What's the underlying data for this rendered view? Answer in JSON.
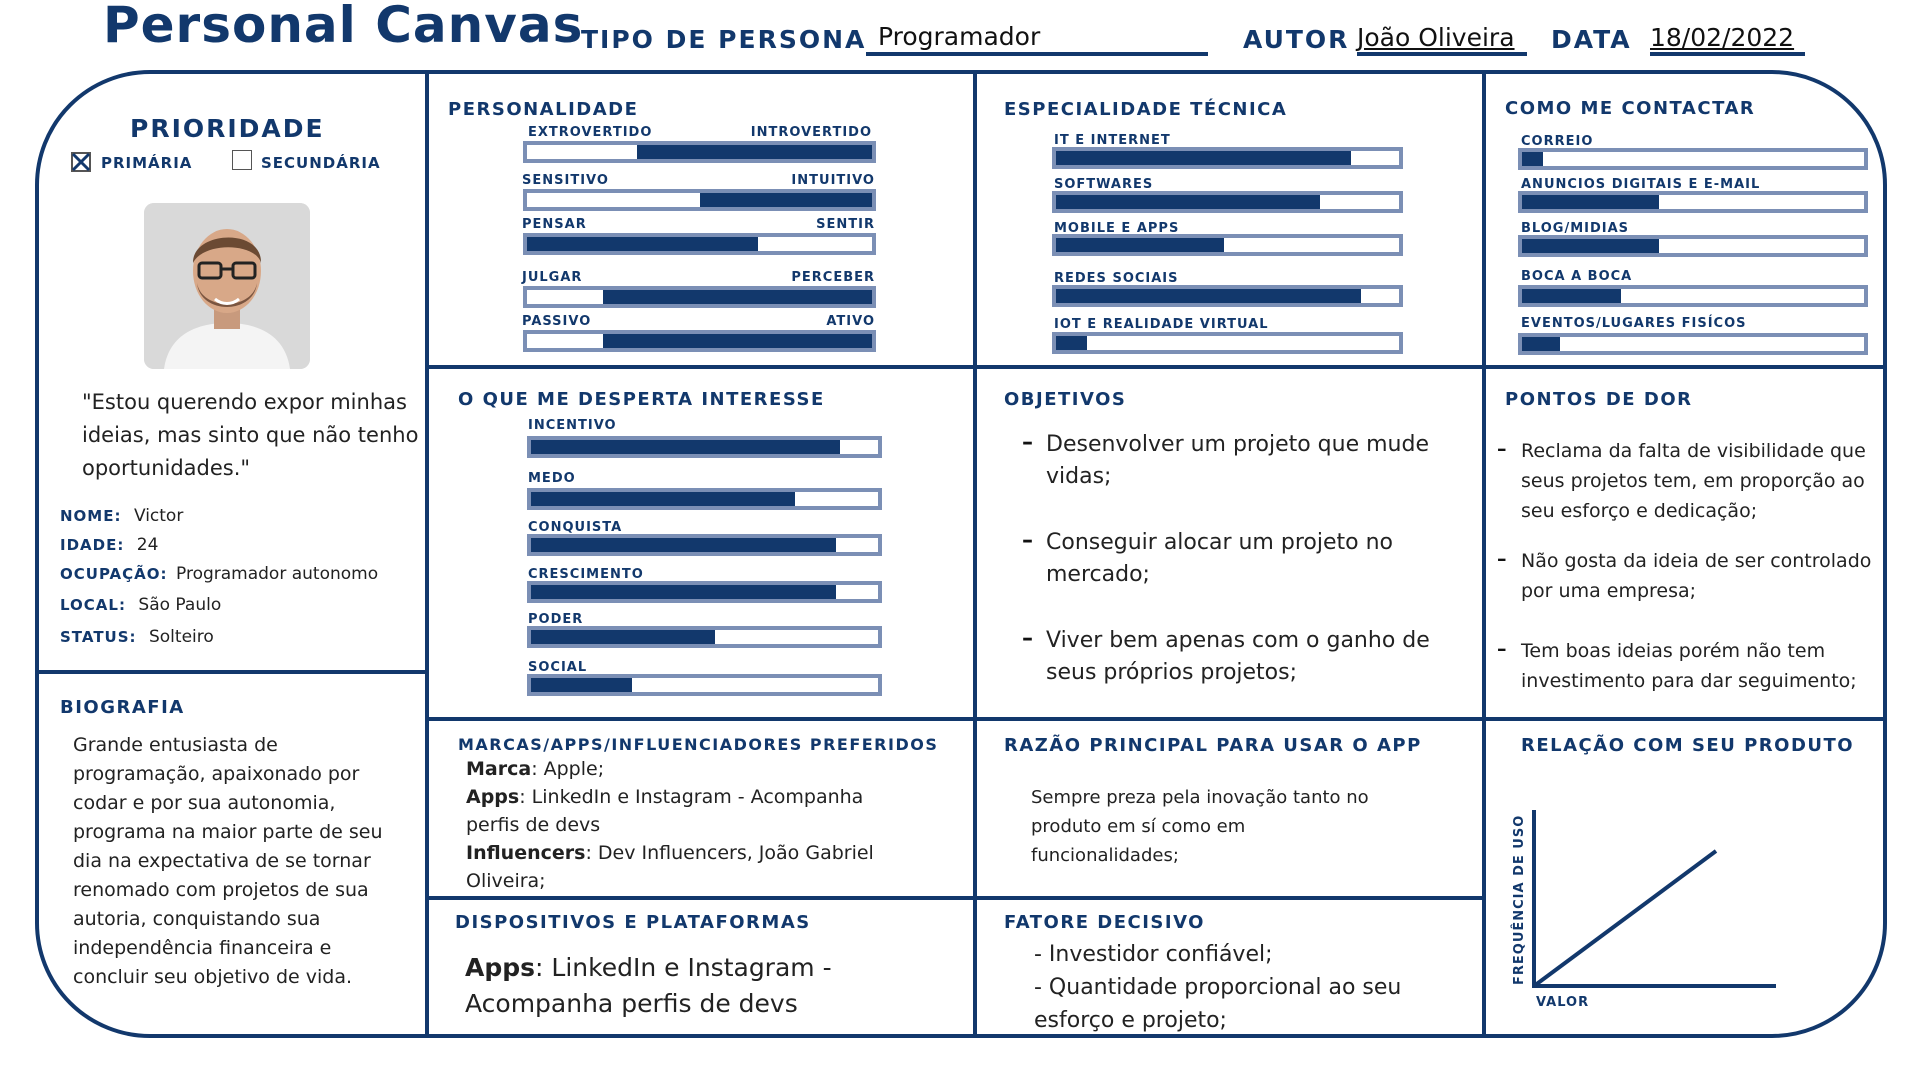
{
  "header": {
    "title": "Personal Canvas",
    "persona_type_label": "TIPO DE PERSONA",
    "persona_type_value": "Programador",
    "author_label": "AUTOR",
    "author_value": "João Oliveira",
    "date_label": "DATA",
    "date_value": "18/02/2022"
  },
  "colors": {
    "brand": "#12386c",
    "bar_border": "#7b8fb5"
  },
  "priority": {
    "title": "PRIORIDADE",
    "primary_label": "PRIMÁRIA",
    "secondary_label": "SECUNDÁRIA",
    "primary_checked": true,
    "secondary_checked": false
  },
  "profile": {
    "photo_icon": "person-photo",
    "quote": "\"Estou querendo expor minhas ideias, mas sinto que não tenho oportunidades.\"",
    "fields": [
      {
        "label": "NOME:",
        "value": "Victor"
      },
      {
        "label": "IDADE:",
        "value": "24"
      },
      {
        "label": "OCUPAÇÃO:",
        "value": "Programador autonomo"
      },
      {
        "label": "LOCAL:",
        "value": "São Paulo"
      },
      {
        "label": "STATUS:",
        "value": "Solteiro"
      }
    ]
  },
  "biography": {
    "title": "BIOGRAFIA",
    "text": "Grande entusiasta de programação, apaixonado por codar e por sua autonomia, programa na maior parte de seu dia na expectativa de se tornar renomado com projetos de sua autoria, conquistando sua independência financeira e concluir seu objetivo de vida."
  },
  "personality": {
    "title": "PERSONALIDADE",
    "scales": [
      {
        "left": "EXTROVERTIDO",
        "right": "INTROVERTIDO",
        "from": 0.32,
        "to": 1.0
      },
      {
        "left": "SENSITIVO",
        "right": "INTUITIVO",
        "from": 0.5,
        "to": 1.0
      },
      {
        "left": "PENSAR",
        "right": "SENTIR",
        "from": 0.0,
        "to": 0.67
      },
      {
        "left": "JULGAR",
        "right": "PERCEBER",
        "from": 0.22,
        "to": 1.0
      },
      {
        "left": "PASSIVO",
        "right": "ATIVO",
        "from": 0.22,
        "to": 1.0
      }
    ]
  },
  "technical": {
    "title": "ESPECIALIDADE TÉCNICA",
    "items": [
      {
        "label": "IT E INTERNET",
        "value": 0.86
      },
      {
        "label": "SOFTWARES",
        "value": 0.77
      },
      {
        "label": "MOBILE E APPS",
        "value": 0.49
      },
      {
        "label": "REDES SOCIAIS",
        "value": 0.89
      },
      {
        "label": "IOT E REALIDADE VIRTUAL",
        "value": 0.09
      }
    ]
  },
  "contact": {
    "title": "COMO ME CONTACTAR",
    "items": [
      {
        "label": "CORREIO",
        "value": 0.06
      },
      {
        "label": "ANUNCIOS DIGITAIS E E-MAIL",
        "value": 0.4
      },
      {
        "label": "BLOG/MIDIAS",
        "value": 0.4
      },
      {
        "label": "BOCA A BOCA",
        "value": 0.29
      },
      {
        "label": "EVENTOS/LUGARES FISÍCOS",
        "value": 0.11
      }
    ]
  },
  "interests": {
    "title": "O QUE ME DESPERTA INTERESSE",
    "items": [
      {
        "label": "INCENTIVO",
        "value": 0.89
      },
      {
        "label": "MEDO",
        "value": 0.76
      },
      {
        "label": "CONQUISTA",
        "value": 0.88
      },
      {
        "label": "CRESCIMENTO",
        "value": 0.88
      },
      {
        "label": "PODER",
        "value": 0.53
      },
      {
        "label": "SOCIAL",
        "value": 0.29
      }
    ]
  },
  "objectives": {
    "title": "OBJETIVOS",
    "items": [
      "Desenvolver um projeto que mude vidas;",
      "Conseguir alocar um projeto no mercado;",
      "Viver bem apenas com o ganho de seus próprios projetos;"
    ]
  },
  "pain_points": {
    "title": "PONTOS DE DOR",
    "items": [
      "Reclama da falta de visibilidade que seus projetos tem, em proporção ao seu esforço e dedicação;",
      "Não gosta da ideia de ser controlado por uma empresa;",
      "Tem boas ideias porém não tem investimento para dar seguimento;"
    ]
  },
  "brands": {
    "title": "MARCAS/APPS/INFLUENCIADORES PREFERIDOS",
    "lines": [
      {
        "key": "Marca",
        "value": ": Apple;"
      },
      {
        "key": "Apps",
        "value": ": LinkedIn e Instagram - Acompanha perfis de devs"
      },
      {
        "key": "Influencers",
        "value": ": Dev Influencers, João Gabriel Oliveira;"
      }
    ]
  },
  "main_reason": {
    "title": "RAZÃO PRINCIPAL PARA USAR O APP",
    "text": "Sempre preza pela inovação tanto no produto em sí como em funcionalidades;"
  },
  "devices": {
    "title": "DISPOSITIVOS E PLATAFORMAS",
    "key": "Apps",
    "value": ": LinkedIn e Instagram - Acompanha perfis de devs"
  },
  "decisive": {
    "title": "FATORE DECISIVO",
    "lines": [
      "- Investidor confiável;",
      "- Quantidade proporcional ao seu esforço e projeto;"
    ]
  },
  "chart_data": {
    "type": "line",
    "title": "RELAÇÃO COM SEU PRODUTO",
    "xlabel": "VALOR",
    "ylabel": "FREQUÊNCIA DE USO",
    "series": [
      {
        "x": [
          0,
          1
        ],
        "y": [
          0,
          1
        ]
      }
    ],
    "grid": false
  }
}
